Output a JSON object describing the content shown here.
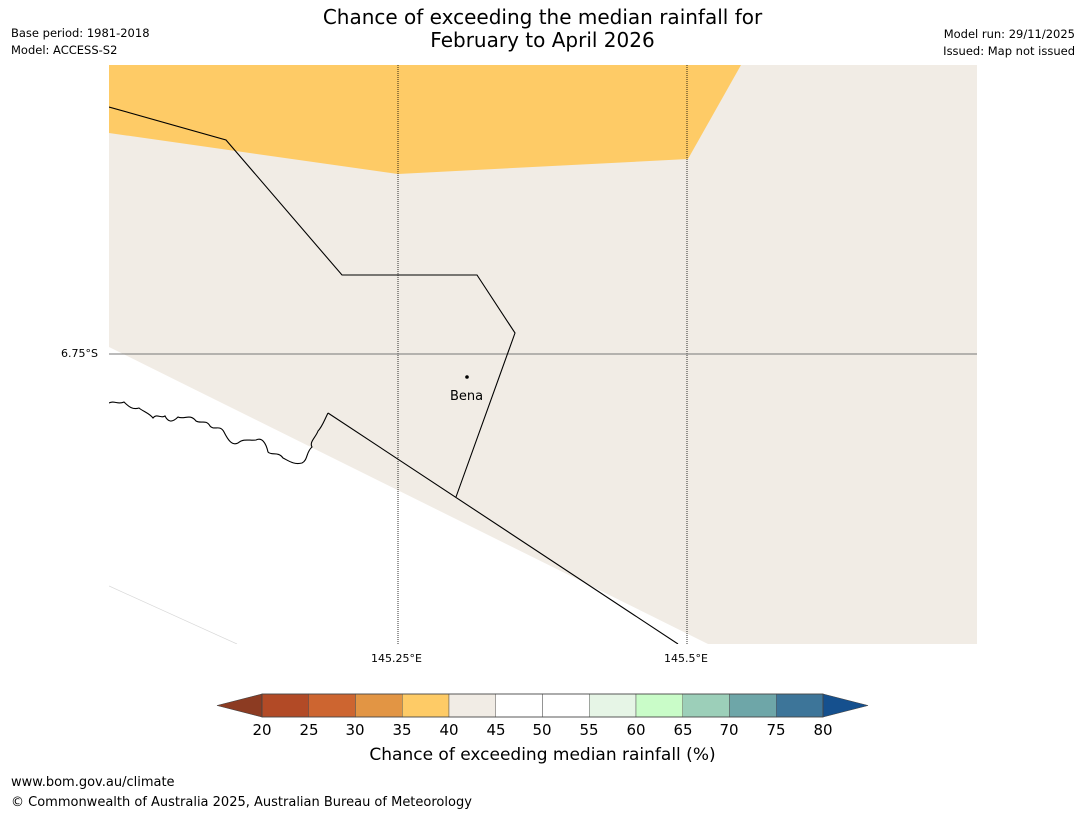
{
  "title": {
    "line1": "Chance of exceeding the median rainfall for",
    "line2": "February to April 2026"
  },
  "meta": {
    "base_period": "Base period: 1981-2018",
    "model": "Model: ACCESS-S2",
    "model_run": "Model run: 29/11/2025",
    "issued": "Issued: Map not issued"
  },
  "map": {
    "lat_label": "6.75°S",
    "lon_labels": [
      "145.25°E",
      "145.5°E"
    ],
    "town": "Bena",
    "colors": {
      "band_35_40": "#fecb66",
      "band_40_45": "#f1ece5",
      "background": "#ffffff"
    }
  },
  "colorbar": {
    "title": "Chance of exceeding median rainfall (%)",
    "ticks": [
      "20",
      "25",
      "30",
      "35",
      "40",
      "45",
      "50",
      "55",
      "60",
      "65",
      "70",
      "75",
      "80"
    ],
    "low_arrow_color": "#8c3b22",
    "high_arrow_color": "#15508e",
    "bin_colors": [
      "#b24a26",
      "#cd6530",
      "#e29544",
      "#fecb66",
      "#f1ece5",
      "#ffffff",
      "#ffffff",
      "#e6f5e6",
      "#c9fcc8",
      "#9ccfb9",
      "#6ea6a8",
      "#3d7599"
    ]
  },
  "footer": {
    "url": "www.bom.gov.au/climate",
    "copyright": "© Commonwealth of Australia 2025, Australian Bureau of Meteorology"
  }
}
